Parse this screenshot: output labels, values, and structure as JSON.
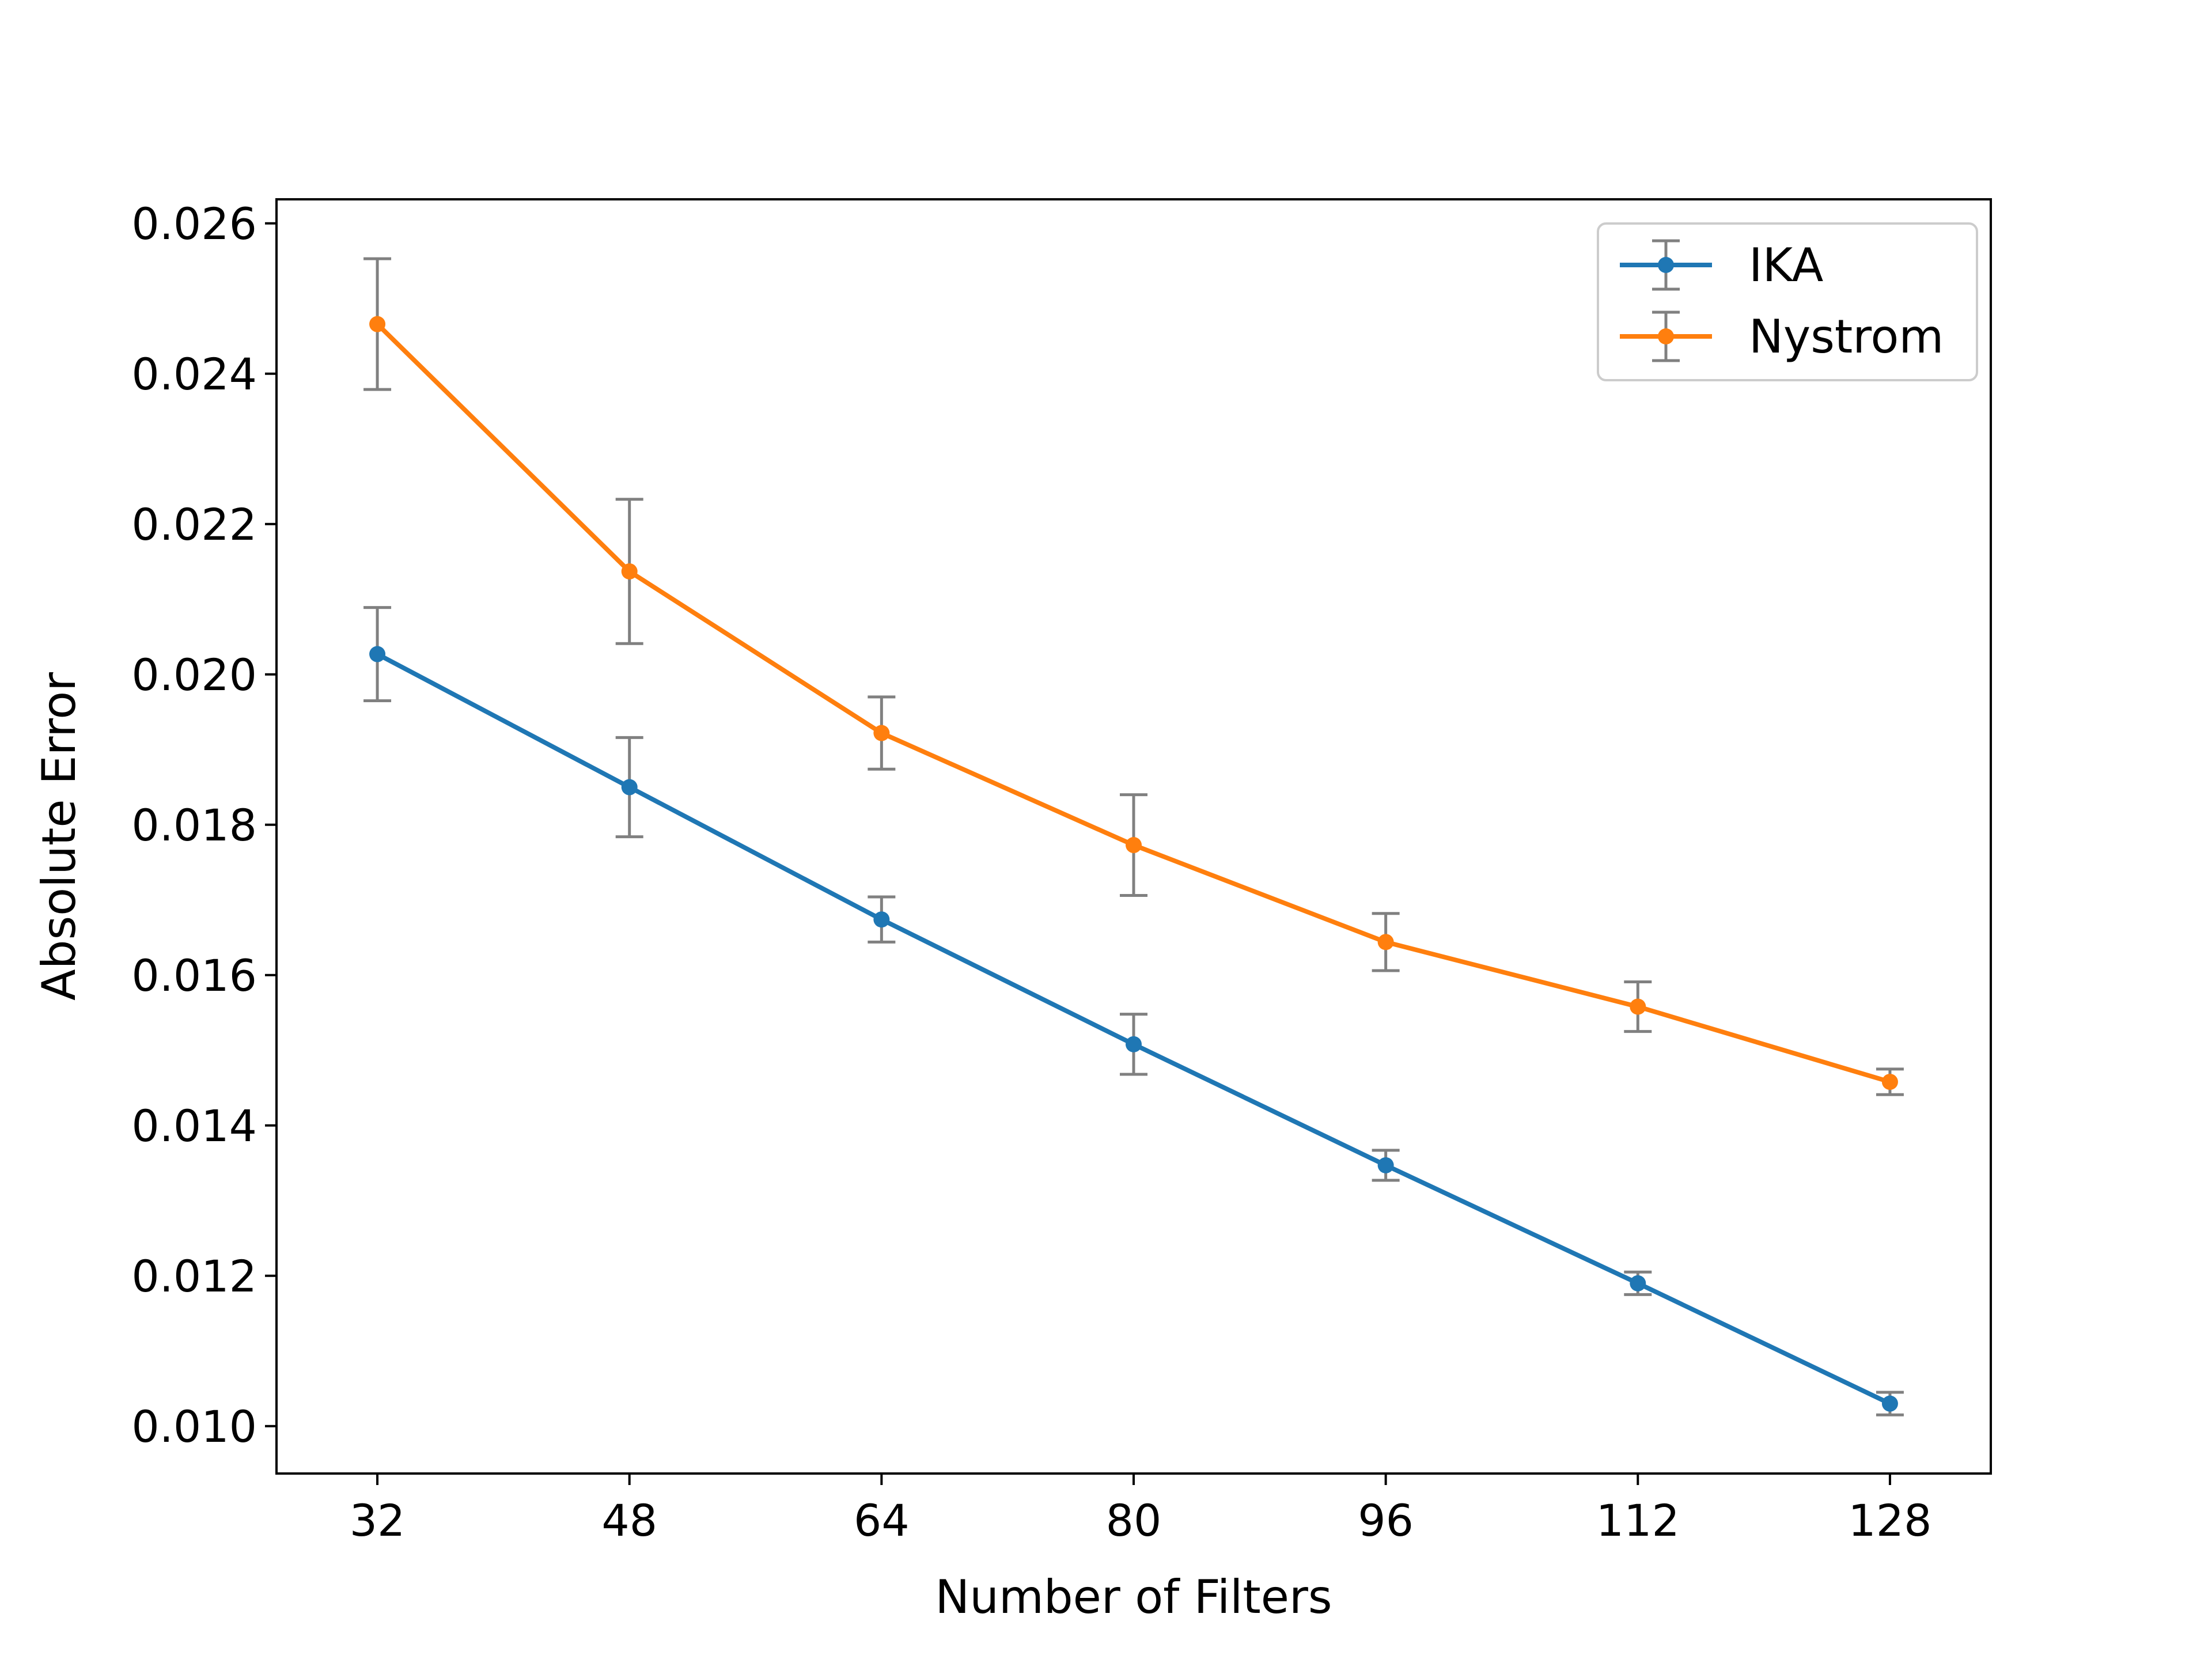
{
  "chart_data": {
    "type": "line",
    "title": "",
    "xlabel": "Number of Filters",
    "ylabel": "Absolute Error",
    "x": [
      32,
      48,
      64,
      80,
      96,
      112,
      128
    ],
    "x_tick_labels": [
      "32",
      "48",
      "64",
      "80",
      "96",
      "112",
      "128"
    ],
    "xlim": [
      25.6,
      134.4
    ],
    "ylim": [
      0.00937,
      0.02632
    ],
    "y_ticks": [
      0.01,
      0.012,
      0.014,
      0.016,
      0.018,
      0.02,
      0.022,
      0.024,
      0.026
    ],
    "y_tick_labels": [
      "0.010",
      "0.012",
      "0.014",
      "0.016",
      "0.018",
      "0.020",
      "0.022",
      "0.024",
      "0.026"
    ],
    "grid": false,
    "legend_position": "top-right",
    "error_bar_color": "#808080",
    "series": [
      {
        "name": "IKA",
        "color": "#1f77b4",
        "values": [
          0.02027,
          0.0185,
          0.01674,
          0.01508,
          0.01347,
          0.0119,
          0.0103
        ],
        "errors": [
          0.00062,
          0.00066,
          0.0003,
          0.0004,
          0.0002,
          0.00015,
          0.00015
        ]
      },
      {
        "name": "Nystrom",
        "color": "#ff7f0e",
        "values": [
          0.02466,
          0.02137,
          0.01922,
          0.01773,
          0.01644,
          0.01558,
          0.01458
        ],
        "errors": [
          0.00087,
          0.00096,
          0.00048,
          0.00067,
          0.00038,
          0.00033,
          0.00017
        ]
      }
    ]
  }
}
